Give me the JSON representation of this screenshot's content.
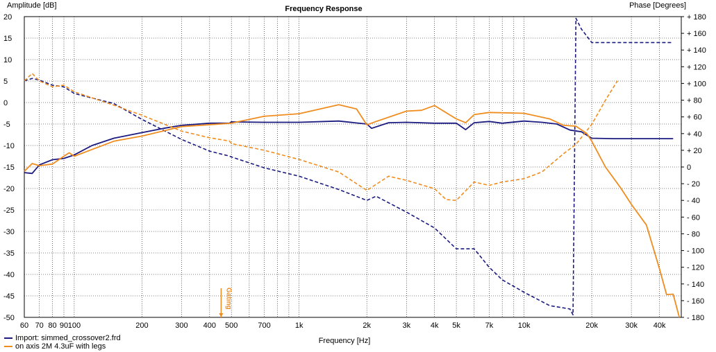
{
  "chart_data": {
    "type": "line",
    "title": "Frequency Response",
    "xlabel": "Frequency [Hz]",
    "ylabel": "Amplitude [dB]",
    "y2label": "Phase [Degrees]",
    "xscale": "log",
    "xlim": [
      60,
      50000
    ],
    "ylim": [
      -50,
      20
    ],
    "y2lim": [
      -180,
      180
    ],
    "x_tick_labels": [
      {
        "value": 60,
        "label": "60"
      },
      {
        "value": 70,
        "label": "70"
      },
      {
        "value": 80,
        "label": "80"
      },
      {
        "value": 90,
        "label": "90"
      },
      {
        "value": 100,
        "label": "100"
      },
      {
        "value": 200,
        "label": "200"
      },
      {
        "value": 300,
        "label": "300"
      },
      {
        "value": 400,
        "label": "400"
      },
      {
        "value": 500,
        "label": "500"
      },
      {
        "value": 700,
        "label": "700"
      },
      {
        "value": 1000,
        "label": "1k"
      },
      {
        "value": 2000,
        "label": "2k"
      },
      {
        "value": 3000,
        "label": "3k"
      },
      {
        "value": 4000,
        "label": "4k"
      },
      {
        "value": 5000,
        "label": "5k"
      },
      {
        "value": 7000,
        "label": "7k"
      },
      {
        "value": 10000,
        "label": "10k"
      },
      {
        "value": 20000,
        "label": "20k"
      },
      {
        "value": 30000,
        "label": "30k"
      },
      {
        "value": 40000,
        "label": "40k"
      }
    ],
    "y_ticks": [
      20,
      15,
      10,
      5,
      0,
      -5,
      -10,
      -15,
      -20,
      -25,
      -30,
      -35,
      -40,
      -45,
      -50
    ],
    "y2_ticks": [
      180,
      160,
      140,
      120,
      100,
      80,
      60,
      40,
      20,
      0,
      -20,
      -40,
      -60,
      -80,
      -100,
      -120,
      -140,
      -160,
      -180
    ],
    "grid": true,
    "legend_position": "bottom-left",
    "annotation": {
      "text": "Gating",
      "x": 450
    },
    "series": [
      {
        "name": "Import: simmed_crossover2.frd",
        "color": "#1a1a80",
        "style": "solid",
        "axis": "left",
        "x": [
          60,
          65,
          70,
          80,
          90,
          100,
          120,
          150,
          200,
          250,
          300,
          400,
          490,
          500,
          700,
          1000,
          1500,
          2000,
          2100,
          2500,
          3000,
          4000,
          5000,
          5500,
          6000,
          7000,
          8000,
          10000,
          12000,
          14000,
          16000,
          18000,
          20000,
          25000,
          30000,
          40000,
          46000
        ],
        "y": [
          -16.3,
          -16.5,
          -14.5,
          -13.3,
          -13,
          -12.2,
          -10,
          -8.3,
          -7,
          -6,
          -5.3,
          -4.8,
          -4.8,
          -4.5,
          -4.6,
          -4.6,
          -4.3,
          -5,
          -6,
          -4.7,
          -4.6,
          -4.8,
          -4.8,
          -6.3,
          -4.7,
          -4.4,
          -4.8,
          -4.3,
          -4.6,
          -5,
          -6.4,
          -6.8,
          -8.3,
          -8.4,
          -8.4,
          -8.4,
          -8.4
        ]
      },
      {
        "name": "Import: simmed_crossover2.frd (phase)",
        "color": "#1a1a80",
        "style": "dashed",
        "axis": "right",
        "x": [
          60,
          65,
          70,
          80,
          90,
          100,
          150,
          200,
          300,
          400,
          490,
          500,
          700,
          1000,
          1500,
          2000,
          2200,
          3000,
          4000,
          5000,
          6000,
          7000,
          8000,
          10000,
          13000,
          16000,
          16500,
          17000,
          18000,
          20000,
          30000,
          46000
        ],
        "y": [
          103,
          106,
          104,
          98,
          96,
          88,
          76,
          57,
          33,
          19,
          13,
          12,
          -1,
          -11,
          -27,
          -40,
          -35,
          -54,
          -73,
          -98,
          -98,
          -120,
          -135,
          -150,
          -166,
          -170,
          -177,
          178,
          165,
          149,
          149,
          149
        ]
      },
      {
        "name": "on axis 2M 4.3uF with legs",
        "color": "#f08c1e",
        "style": "solid",
        "axis": "left",
        "x": [
          60,
          65,
          70,
          80,
          90,
          95,
          100,
          150,
          200,
          300,
          500,
          700,
          1000,
          1500,
          1800,
          2000,
          2200,
          3000,
          3500,
          4000,
          5000,
          5500,
          6000,
          7000,
          10000,
          13000,
          15000,
          17000,
          19000,
          20000,
          23000,
          27000,
          30000,
          35000,
          40000,
          43000,
          46000,
          49000
        ],
        "y": [
          -16,
          -14.2,
          -14.7,
          -14.3,
          -12.5,
          -11.7,
          -12.5,
          -9,
          -7.8,
          -5.6,
          -4.8,
          -3.2,
          -2.6,
          -0.5,
          -1.5,
          -5.2,
          -4.4,
          -2,
          -1.8,
          -0.7,
          -3.8,
          -4.7,
          -2.8,
          -2.3,
          -2.5,
          -3.8,
          -5.3,
          -5.5,
          -7.2,
          -9,
          -15,
          -20,
          -23.7,
          -28.5,
          -38.7,
          -44.7,
          -44.6,
          -50
        ]
      },
      {
        "name": "on axis 2M 4.3uF with legs (phase)",
        "color": "#f08c1e",
        "style": "dashed",
        "axis": "right",
        "x": [
          60,
          65,
          70,
          80,
          90,
          100,
          150,
          200,
          300,
          400,
          490,
          500,
          700,
          1000,
          1500,
          2000,
          2500,
          3000,
          4000,
          4500,
          5000,
          6000,
          7000,
          8000,
          10000,
          12000,
          15000,
          17000,
          20000,
          23000,
          26000
        ],
        "y": [
          103,
          112,
          103,
          96,
          98,
          90,
          74,
          62,
          43,
          35,
          31,
          28,
          20,
          9,
          -6,
          -28,
          -11,
          -16,
          -26,
          -39,
          -40,
          -18,
          -22,
          -18,
          -14,
          -6,
          16,
          27,
          51,
          80,
          103
        ]
      }
    ]
  }
}
